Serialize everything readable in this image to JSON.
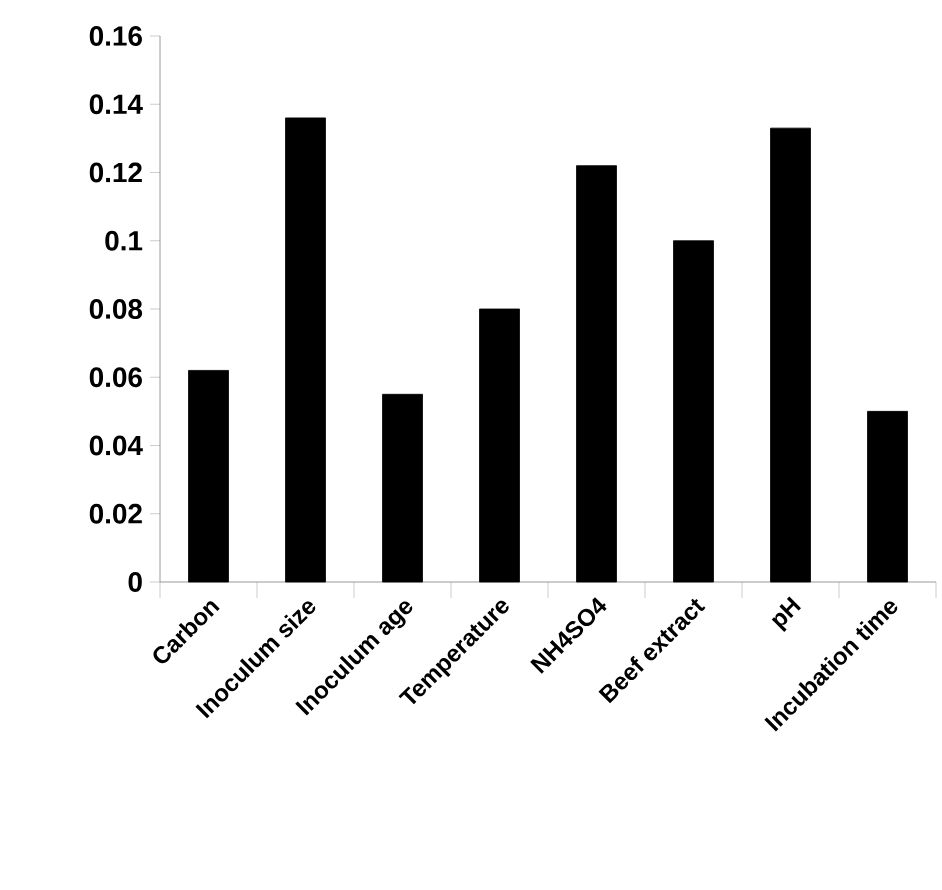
{
  "chart_data": {
    "type": "bar",
    "categories": [
      "Carbon",
      "Inoculum size",
      "Inoculum age",
      "Temperature",
      "NH4SO4",
      "Beef extract",
      "pH",
      "Incubation time"
    ],
    "values": [
      0.062,
      0.136,
      0.055,
      0.08,
      0.122,
      0.1,
      0.133,
      0.05
    ],
    "color": "#000000",
    "ylim": [
      0,
      0.16
    ],
    "yticks": [
      0,
      0.02,
      0.04,
      0.06,
      0.08,
      0.1,
      0.12,
      0.14,
      0.16
    ]
  }
}
